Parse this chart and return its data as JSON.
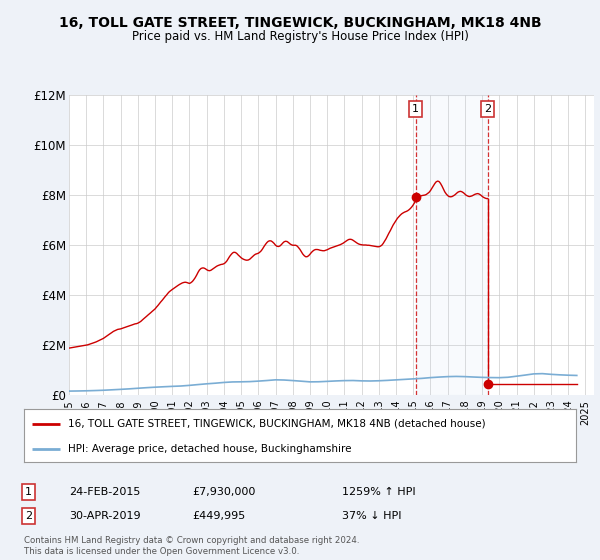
{
  "title": "16, TOLL GATE STREET, TINGEWICK, BUCKINGHAM, MK18 4NB",
  "subtitle": "Price paid vs. HM Land Registry's House Price Index (HPI)",
  "ylim": [
    0,
    12000000
  ],
  "yticks": [
    0,
    2000000,
    4000000,
    6000000,
    8000000,
    10000000,
    12000000
  ],
  "ytick_labels": [
    "£0",
    "£2M",
    "£4M",
    "£6M",
    "£8M",
    "£10M",
    "£12M"
  ],
  "xlim_start": 1995.0,
  "xlim_end": 2025.5,
  "background_color": "#eef2f8",
  "plot_bg_color": "#ffffff",
  "red_line_color": "#cc0000",
  "blue_line_color": "#7aadd4",
  "marker1_date": "24-FEB-2015",
  "marker1_price": 7930000,
  "marker1_hpi": "1259% ↑ HPI",
  "marker1_x": 2015.13,
  "marker2_date": "30-APR-2019",
  "marker2_price": 449995,
  "marker2_hpi": "37% ↓ HPI",
  "marker2_x": 2019.33,
  "legend_line1": "16, TOLL GATE STREET, TINGEWICK, BUCKINGHAM, MK18 4NB (detached house)",
  "legend_line2": "HPI: Average price, detached house, Buckinghamshire",
  "footer": "Contains HM Land Registry data © Crown copyright and database right 2024.\nThis data is licensed under the Open Government Licence v3.0.",
  "red_hpi_x": [
    1995.0,
    1995.08,
    1995.17,
    1995.25,
    1995.33,
    1995.42,
    1995.5,
    1995.58,
    1995.67,
    1995.75,
    1995.83,
    1995.92,
    1996.0,
    1996.08,
    1996.17,
    1996.25,
    1996.33,
    1996.42,
    1996.5,
    1996.58,
    1996.67,
    1996.75,
    1996.83,
    1996.92,
    1997.0,
    1997.08,
    1997.17,
    1997.25,
    1997.33,
    1997.42,
    1997.5,
    1997.58,
    1997.67,
    1997.75,
    1997.83,
    1997.92,
    1998.0,
    1998.08,
    1998.17,
    1998.25,
    1998.33,
    1998.42,
    1998.5,
    1998.58,
    1998.67,
    1998.75,
    1998.83,
    1998.92,
    1999.0,
    1999.08,
    1999.17,
    1999.25,
    1999.33,
    1999.42,
    1999.5,
    1999.58,
    1999.67,
    1999.75,
    1999.83,
    1999.92,
    2000.0,
    2000.08,
    2000.17,
    2000.25,
    2000.33,
    2000.42,
    2000.5,
    2000.58,
    2000.67,
    2000.75,
    2000.83,
    2000.92,
    2001.0,
    2001.08,
    2001.17,
    2001.25,
    2001.33,
    2001.42,
    2001.5,
    2001.58,
    2001.67,
    2001.75,
    2001.83,
    2001.92,
    2002.0,
    2002.08,
    2002.17,
    2002.25,
    2002.33,
    2002.42,
    2002.5,
    2002.58,
    2002.67,
    2002.75,
    2002.83,
    2002.92,
    2003.0,
    2003.08,
    2003.17,
    2003.25,
    2003.33,
    2003.42,
    2003.5,
    2003.58,
    2003.67,
    2003.75,
    2003.83,
    2003.92,
    2004.0,
    2004.08,
    2004.17,
    2004.25,
    2004.33,
    2004.42,
    2004.5,
    2004.58,
    2004.67,
    2004.75,
    2004.83,
    2004.92,
    2005.0,
    2005.08,
    2005.17,
    2005.25,
    2005.33,
    2005.42,
    2005.5,
    2005.58,
    2005.67,
    2005.75,
    2005.83,
    2005.92,
    2006.0,
    2006.08,
    2006.17,
    2006.25,
    2006.33,
    2006.42,
    2006.5,
    2006.58,
    2006.67,
    2006.75,
    2006.83,
    2006.92,
    2007.0,
    2007.08,
    2007.17,
    2007.25,
    2007.33,
    2007.42,
    2007.5,
    2007.58,
    2007.67,
    2007.75,
    2007.83,
    2007.92,
    2008.0,
    2008.08,
    2008.17,
    2008.25,
    2008.33,
    2008.42,
    2008.5,
    2008.58,
    2008.67,
    2008.75,
    2008.83,
    2008.92,
    2009.0,
    2009.08,
    2009.17,
    2009.25,
    2009.33,
    2009.42,
    2009.5,
    2009.58,
    2009.67,
    2009.75,
    2009.83,
    2009.92,
    2010.0,
    2010.08,
    2010.17,
    2010.25,
    2010.33,
    2010.42,
    2010.5,
    2010.58,
    2010.67,
    2010.75,
    2010.83,
    2010.92,
    2011.0,
    2011.08,
    2011.17,
    2011.25,
    2011.33,
    2011.42,
    2011.5,
    2011.58,
    2011.67,
    2011.75,
    2011.83,
    2011.92,
    2012.0,
    2012.08,
    2012.17,
    2012.25,
    2012.33,
    2012.42,
    2012.5,
    2012.58,
    2012.67,
    2012.75,
    2012.83,
    2012.92,
    2013.0,
    2013.08,
    2013.17,
    2013.25,
    2013.33,
    2013.42,
    2013.5,
    2013.58,
    2013.67,
    2013.75,
    2013.83,
    2013.92,
    2014.0,
    2014.08,
    2014.17,
    2014.25,
    2014.33,
    2014.42,
    2014.5,
    2014.58,
    2014.67,
    2014.75,
    2014.83,
    2014.92,
    2015.0,
    2015.08,
    2015.17,
    2015.25,
    2015.33,
    2015.42,
    2015.5,
    2015.58,
    2015.67,
    2015.75,
    2015.83,
    2015.92,
    2016.0,
    2016.08,
    2016.17,
    2016.25,
    2016.33,
    2016.42,
    2016.5,
    2016.58,
    2016.67,
    2016.75,
    2016.83,
    2016.92,
    2017.0,
    2017.08,
    2017.17,
    2017.25,
    2017.33,
    2017.42,
    2017.5,
    2017.58,
    2017.67,
    2017.75,
    2017.83,
    2017.92,
    2018.0,
    2018.08,
    2018.17,
    2018.25,
    2018.33,
    2018.42,
    2018.5,
    2018.58,
    2018.67,
    2018.75,
    2018.83,
    2018.92,
    2019.0,
    2019.08,
    2019.17,
    2019.25,
    2019.33,
    2019.33,
    2019.42,
    2019.5,
    2019.58,
    2019.67,
    2019.75,
    2019.83,
    2019.92,
    2020.0,
    2020.08,
    2020.17,
    2020.25,
    2020.33,
    2020.42,
    2020.5,
    2020.58,
    2020.67,
    2020.75,
    2020.83,
    2020.92,
    2021.0,
    2021.08,
    2021.17,
    2021.25,
    2021.33,
    2021.42,
    2021.5,
    2021.58,
    2021.67,
    2021.75,
    2021.83,
    2021.92,
    2022.0,
    2022.08,
    2022.17,
    2022.25,
    2022.33,
    2022.42,
    2022.5,
    2022.58,
    2022.67,
    2022.75,
    2022.83,
    2022.92,
    2023.0,
    2023.08,
    2023.17,
    2023.25,
    2023.33,
    2023.42,
    2023.5,
    2023.58,
    2023.67,
    2023.75,
    2023.83,
    2023.92,
    2024.0,
    2024.08,
    2024.17,
    2024.25,
    2024.33,
    2024.42,
    2024.5
  ],
  "red_hpi_y": [
    1870000,
    1880000,
    1890000,
    1900000,
    1910000,
    1920000,
    1930000,
    1940000,
    1955000,
    1965000,
    1970000,
    1980000,
    1990000,
    2000000,
    2020000,
    2040000,
    2060000,
    2080000,
    2100000,
    2120000,
    2150000,
    2175000,
    2200000,
    2230000,
    2260000,
    2300000,
    2340000,
    2380000,
    2420000,
    2460000,
    2500000,
    2540000,
    2570000,
    2600000,
    2620000,
    2630000,
    2640000,
    2660000,
    2680000,
    2700000,
    2720000,
    2740000,
    2760000,
    2780000,
    2800000,
    2820000,
    2840000,
    2850000,
    2870000,
    2900000,
    2940000,
    2990000,
    3040000,
    3090000,
    3140000,
    3190000,
    3240000,
    3290000,
    3340000,
    3390000,
    3440000,
    3510000,
    3580000,
    3650000,
    3720000,
    3790000,
    3860000,
    3930000,
    4000000,
    4070000,
    4130000,
    4180000,
    4220000,
    4260000,
    4300000,
    4340000,
    4380000,
    4420000,
    4450000,
    4480000,
    4500000,
    4510000,
    4500000,
    4480000,
    4460000,
    4490000,
    4540000,
    4610000,
    4690000,
    4800000,
    4910000,
    5000000,
    5060000,
    5080000,
    5080000,
    5050000,
    5010000,
    4980000,
    4970000,
    4990000,
    5030000,
    5080000,
    5120000,
    5150000,
    5180000,
    5200000,
    5220000,
    5230000,
    5250000,
    5290000,
    5360000,
    5450000,
    5540000,
    5620000,
    5680000,
    5710000,
    5700000,
    5660000,
    5600000,
    5540000,
    5490000,
    5450000,
    5420000,
    5400000,
    5390000,
    5400000,
    5430000,
    5480000,
    5540000,
    5590000,
    5630000,
    5650000,
    5670000,
    5710000,
    5770000,
    5850000,
    5940000,
    6030000,
    6100000,
    6150000,
    6170000,
    6160000,
    6120000,
    6060000,
    5990000,
    5950000,
    5940000,
    5960000,
    6010000,
    6080000,
    6130000,
    6150000,
    6140000,
    6100000,
    6050000,
    6010000,
    5990000,
    5990000,
    5990000,
    5960000,
    5900000,
    5820000,
    5730000,
    5640000,
    5570000,
    5530000,
    5530000,
    5570000,
    5630000,
    5700000,
    5760000,
    5800000,
    5820000,
    5820000,
    5810000,
    5790000,
    5780000,
    5770000,
    5770000,
    5790000,
    5810000,
    5840000,
    5870000,
    5890000,
    5910000,
    5930000,
    5950000,
    5970000,
    5990000,
    6010000,
    6040000,
    6070000,
    6110000,
    6150000,
    6190000,
    6220000,
    6230000,
    6220000,
    6190000,
    6150000,
    6110000,
    6070000,
    6040000,
    6020000,
    6010000,
    6000000,
    6000000,
    6000000,
    5990000,
    5990000,
    5980000,
    5970000,
    5960000,
    5950000,
    5940000,
    5930000,
    5930000,
    5950000,
    5990000,
    6060000,
    6150000,
    6250000,
    6360000,
    6470000,
    6580000,
    6690000,
    6800000,
    6900000,
    6990000,
    7070000,
    7140000,
    7200000,
    7250000,
    7290000,
    7320000,
    7340000,
    7370000,
    7410000,
    7460000,
    7530000,
    7610000,
    7700000,
    7790000,
    7870000,
    7930000,
    7960000,
    7980000,
    7990000,
    8000000,
    8020000,
    8060000,
    8110000,
    8180000,
    8270000,
    8370000,
    8460000,
    8530000,
    8560000,
    8540000,
    8470000,
    8360000,
    8240000,
    8130000,
    8040000,
    7980000,
    7940000,
    7930000,
    7940000,
    7970000,
    8010000,
    8060000,
    8110000,
    8140000,
    8150000,
    8130000,
    8090000,
    8040000,
    7990000,
    7960000,
    7940000,
    7950000,
    7970000,
    8000000,
    8030000,
    8050000,
    8060000,
    8040000,
    8000000,
    7950000,
    7910000,
    7880000,
    7860000,
    7860000,
    449995,
    449995,
    449995,
    449995,
    449995,
    449995,
    449995,
    449995,
    449995,
    449995,
    449995,
    449995,
    449995,
    449995,
    449995,
    449995,
    449995,
    449995,
    449995,
    449995,
    449995,
    449995,
    449995,
    449995,
    449995,
    449995,
    449995,
    449995,
    449995,
    449995,
    449995,
    449995,
    449995,
    449995,
    449995,
    449995,
    449995,
    449995,
    449995,
    449995,
    449995,
    449995,
    449995,
    449995,
    449995,
    449995,
    449995,
    449995,
    449995,
    449995,
    449995,
    449995,
    449995,
    449995,
    449995,
    449995,
    449995,
    449995,
    449995,
    449995,
    449995,
    449995,
    449995
  ],
  "blue_hpi_x": [
    1995.0,
    1995.5,
    1996.0,
    1996.5,
    1997.0,
    1997.5,
    1998.0,
    1998.5,
    1999.0,
    1999.5,
    2000.0,
    2000.5,
    2001.0,
    2001.5,
    2002.0,
    2002.5,
    2003.0,
    2003.5,
    2004.0,
    2004.5,
    2005.0,
    2005.5,
    2006.0,
    2006.5,
    2007.0,
    2007.5,
    2008.0,
    2008.5,
    2009.0,
    2009.5,
    2010.0,
    2010.5,
    2011.0,
    2011.5,
    2012.0,
    2012.5,
    2013.0,
    2013.5,
    2014.0,
    2014.5,
    2015.0,
    2015.5,
    2016.0,
    2016.5,
    2017.0,
    2017.5,
    2018.0,
    2018.5,
    2019.0,
    2019.5,
    2020.0,
    2020.5,
    2021.0,
    2021.5,
    2022.0,
    2022.5,
    2023.0,
    2023.5,
    2024.0,
    2024.5
  ],
  "blue_hpi_y": [
    148000,
    153000,
    160000,
    170000,
    182000,
    200000,
    218000,
    238000,
    262000,
    285000,
    305000,
    322000,
    338000,
    352000,
    378000,
    410000,
    440000,
    465000,
    495000,
    515000,
    520000,
    528000,
    548000,
    572000,
    600000,
    592000,
    570000,
    545000,
    518000,
    522000,
    538000,
    555000,
    568000,
    572000,
    558000,
    553000,
    562000,
    578000,
    598000,
    618000,
    638000,
    658000,
    688000,
    710000,
    728000,
    736000,
    728000,
    712000,
    698000,
    690000,
    686000,
    702000,
    745000,
    790000,
    838000,
    848000,
    820000,
    800000,
    785000,
    775000
  ]
}
